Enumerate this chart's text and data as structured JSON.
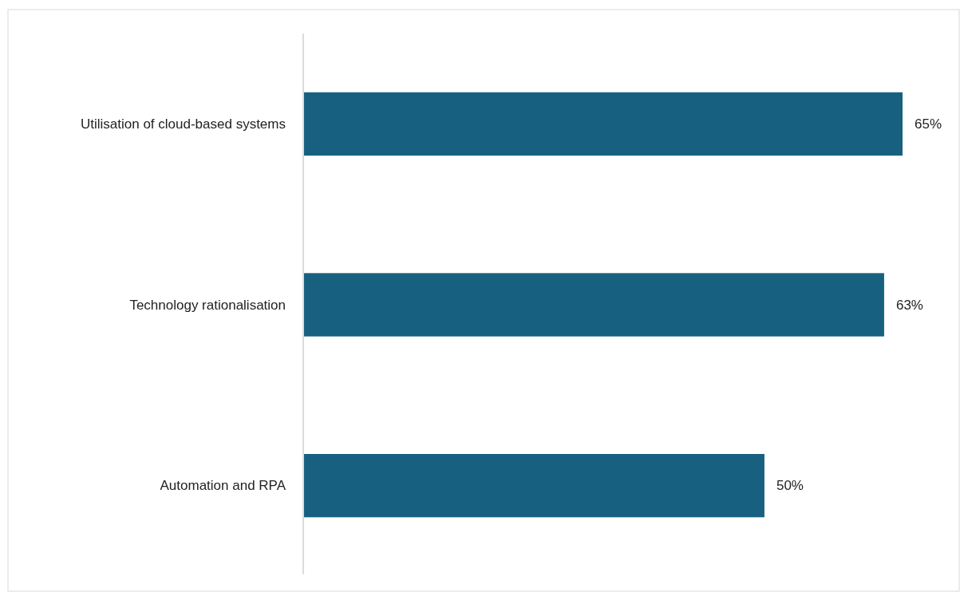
{
  "chart_data": {
    "type": "bar",
    "orientation": "horizontal",
    "categories": [
      "Utilisation of cloud-based systems",
      "Technology rationalisation",
      "Automation and RPA"
    ],
    "values": [
      65,
      63,
      50
    ],
    "value_labels": [
      "65%",
      "63%",
      "50%"
    ],
    "color": "#17607f"
  }
}
